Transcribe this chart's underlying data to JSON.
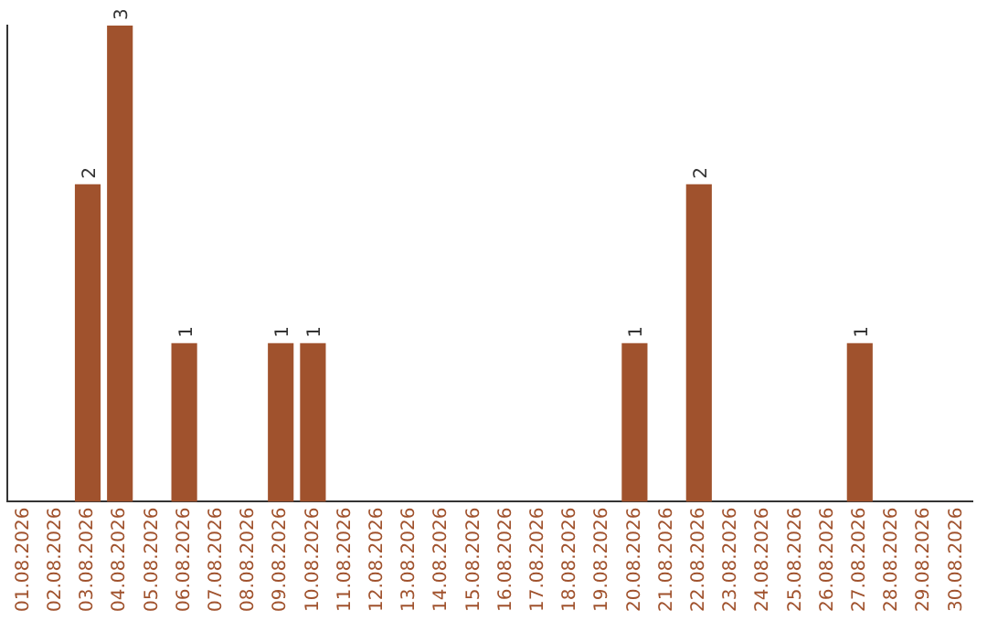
{
  "chart_data": {
    "type": "bar",
    "categories": [
      "01.08.2026",
      "02.08.2026",
      "03.08.2026",
      "04.08.2026",
      "05.08.2026",
      "06.08.2026",
      "07.08.2026",
      "08.08.2026",
      "09.08.2026",
      "10.08.2026",
      "11.08.2026",
      "12.08.2026",
      "13.08.2026",
      "14.08.2026",
      "15.08.2026",
      "16.08.2026",
      "17.08.2026",
      "18.08.2026",
      "19.08.2026",
      "20.08.2026",
      "21.08.2026",
      "22.08.2026",
      "23.08.2026",
      "24.08.2026",
      "25.08.2026",
      "26.08.2026",
      "27.08.2026",
      "28.08.2026",
      "29.08.2026",
      "30.08.2026"
    ],
    "values": [
      0,
      0,
      2,
      3,
      0,
      1,
      0,
      0,
      1,
      1,
      0,
      0,
      0,
      0,
      0,
      0,
      0,
      0,
      0,
      1,
      0,
      2,
      0,
      0,
      0,
      0,
      1,
      0,
      0,
      0
    ],
    "value_labels": [
      null,
      null,
      "2",
      "3",
      null,
      "1",
      null,
      null,
      "1",
      "1",
      null,
      null,
      null,
      null,
      null,
      null,
      null,
      null,
      null,
      "1",
      null,
      "2",
      null,
      null,
      null,
      null,
      "1",
      null,
      null,
      null
    ],
    "color": "#a0522d",
    "ylim": [
      0,
      3
    ],
    "tick_labels": "x",
    "grid": false,
    "legend": false
  }
}
